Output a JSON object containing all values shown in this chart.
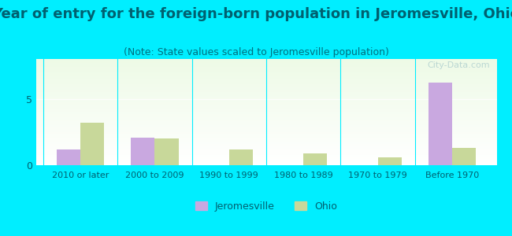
{
  "title": "Year of entry for the foreign-born population in Jeromesville, Ohio",
  "subtitle": "(Note: State values scaled to Jeromesville population)",
  "categories": [
    "2010 or later",
    "2000 to 2009",
    "1990 to 1999",
    "1980 to 1989",
    "1970 to 1979",
    "Before 1970"
  ],
  "jeromesville_values": [
    1.2,
    2.1,
    0,
    0,
    0,
    6.2
  ],
  "ohio_values": [
    3.2,
    2.0,
    1.2,
    0.9,
    0.6,
    1.3
  ],
  "jeromesville_color": "#c9a8e0",
  "ohio_color": "#c8d89a",
  "background_color": "#00eeff",
  "title_color": "#006070",
  "subtitle_color": "#007080",
  "tick_color": "#006070",
  "ylim": [
    0,
    8
  ],
  "yticks": [
    0,
    5
  ],
  "bar_width": 0.32,
  "title_fontsize": 13,
  "subtitle_fontsize": 9,
  "watermark": "City-Data.com",
  "legend_labels": [
    "Jeromesville",
    "Ohio"
  ],
  "legend_fontsize": 9
}
